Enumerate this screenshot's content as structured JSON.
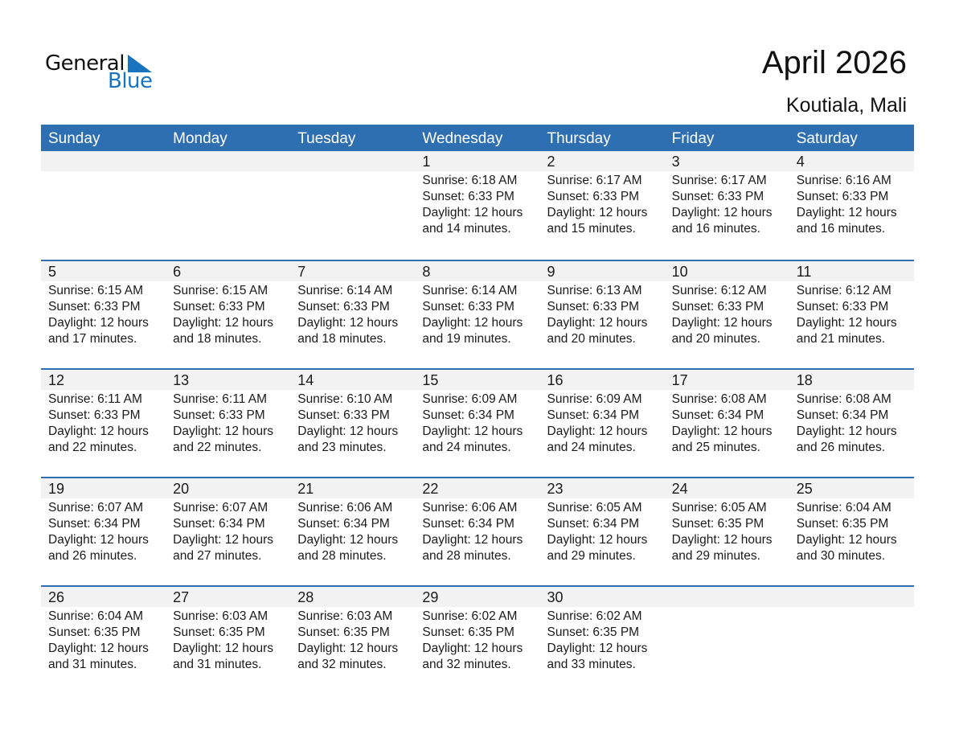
{
  "logo": {
    "text1": "General",
    "text2": "Blue",
    "color": "#1a73be"
  },
  "header": {
    "title": "April 2026",
    "location": "Koutiala, Mali"
  },
  "accent": "#2e6fb1",
  "weekdays": [
    "Sunday",
    "Monday",
    "Tuesday",
    "Wednesday",
    "Thursday",
    "Friday",
    "Saturday"
  ],
  "weeks": [
    [
      null,
      null,
      null,
      {
        "day": "1",
        "sunrise": "Sunrise: 6:18 AM",
        "sunset": "Sunset: 6:33 PM",
        "daylight1": "Daylight: 12 hours",
        "daylight2": "and 14 minutes."
      },
      {
        "day": "2",
        "sunrise": "Sunrise: 6:17 AM",
        "sunset": "Sunset: 6:33 PM",
        "daylight1": "Daylight: 12 hours",
        "daylight2": "and 15 minutes."
      },
      {
        "day": "3",
        "sunrise": "Sunrise: 6:17 AM",
        "sunset": "Sunset: 6:33 PM",
        "daylight1": "Daylight: 12 hours",
        "daylight2": "and 16 minutes."
      },
      {
        "day": "4",
        "sunrise": "Sunrise: 6:16 AM",
        "sunset": "Sunset: 6:33 PM",
        "daylight1": "Daylight: 12 hours",
        "daylight2": "and 16 minutes."
      }
    ],
    [
      {
        "day": "5",
        "sunrise": "Sunrise: 6:15 AM",
        "sunset": "Sunset: 6:33 PM",
        "daylight1": "Daylight: 12 hours",
        "daylight2": "and 17 minutes."
      },
      {
        "day": "6",
        "sunrise": "Sunrise: 6:15 AM",
        "sunset": "Sunset: 6:33 PM",
        "daylight1": "Daylight: 12 hours",
        "daylight2": "and 18 minutes."
      },
      {
        "day": "7",
        "sunrise": "Sunrise: 6:14 AM",
        "sunset": "Sunset: 6:33 PM",
        "daylight1": "Daylight: 12 hours",
        "daylight2": "and 18 minutes."
      },
      {
        "day": "8",
        "sunrise": "Sunrise: 6:14 AM",
        "sunset": "Sunset: 6:33 PM",
        "daylight1": "Daylight: 12 hours",
        "daylight2": "and 19 minutes."
      },
      {
        "day": "9",
        "sunrise": "Sunrise: 6:13 AM",
        "sunset": "Sunset: 6:33 PM",
        "daylight1": "Daylight: 12 hours",
        "daylight2": "and 20 minutes."
      },
      {
        "day": "10",
        "sunrise": "Sunrise: 6:12 AM",
        "sunset": "Sunset: 6:33 PM",
        "daylight1": "Daylight: 12 hours",
        "daylight2": "and 20 minutes."
      },
      {
        "day": "11",
        "sunrise": "Sunrise: 6:12 AM",
        "sunset": "Sunset: 6:33 PM",
        "daylight1": "Daylight: 12 hours",
        "daylight2": "and 21 minutes."
      }
    ],
    [
      {
        "day": "12",
        "sunrise": "Sunrise: 6:11 AM",
        "sunset": "Sunset: 6:33 PM",
        "daylight1": "Daylight: 12 hours",
        "daylight2": "and 22 minutes."
      },
      {
        "day": "13",
        "sunrise": "Sunrise: 6:11 AM",
        "sunset": "Sunset: 6:33 PM",
        "daylight1": "Daylight: 12 hours",
        "daylight2": "and 22 minutes."
      },
      {
        "day": "14",
        "sunrise": "Sunrise: 6:10 AM",
        "sunset": "Sunset: 6:33 PM",
        "daylight1": "Daylight: 12 hours",
        "daylight2": "and 23 minutes."
      },
      {
        "day": "15",
        "sunrise": "Sunrise: 6:09 AM",
        "sunset": "Sunset: 6:34 PM",
        "daylight1": "Daylight: 12 hours",
        "daylight2": "and 24 minutes."
      },
      {
        "day": "16",
        "sunrise": "Sunrise: 6:09 AM",
        "sunset": "Sunset: 6:34 PM",
        "daylight1": "Daylight: 12 hours",
        "daylight2": "and 24 minutes."
      },
      {
        "day": "17",
        "sunrise": "Sunrise: 6:08 AM",
        "sunset": "Sunset: 6:34 PM",
        "daylight1": "Daylight: 12 hours",
        "daylight2": "and 25 minutes."
      },
      {
        "day": "18",
        "sunrise": "Sunrise: 6:08 AM",
        "sunset": "Sunset: 6:34 PM",
        "daylight1": "Daylight: 12 hours",
        "daylight2": "and 26 minutes."
      }
    ],
    [
      {
        "day": "19",
        "sunrise": "Sunrise: 6:07 AM",
        "sunset": "Sunset: 6:34 PM",
        "daylight1": "Daylight: 12 hours",
        "daylight2": "and 26 minutes."
      },
      {
        "day": "20",
        "sunrise": "Sunrise: 6:07 AM",
        "sunset": "Sunset: 6:34 PM",
        "daylight1": "Daylight: 12 hours",
        "daylight2": "and 27 minutes."
      },
      {
        "day": "21",
        "sunrise": "Sunrise: 6:06 AM",
        "sunset": "Sunset: 6:34 PM",
        "daylight1": "Daylight: 12 hours",
        "daylight2": "and 28 minutes."
      },
      {
        "day": "22",
        "sunrise": "Sunrise: 6:06 AM",
        "sunset": "Sunset: 6:34 PM",
        "daylight1": "Daylight: 12 hours",
        "daylight2": "and 28 minutes."
      },
      {
        "day": "23",
        "sunrise": "Sunrise: 6:05 AM",
        "sunset": "Sunset: 6:34 PM",
        "daylight1": "Daylight: 12 hours",
        "daylight2": "and 29 minutes."
      },
      {
        "day": "24",
        "sunrise": "Sunrise: 6:05 AM",
        "sunset": "Sunset: 6:35 PM",
        "daylight1": "Daylight: 12 hours",
        "daylight2": "and 29 minutes."
      },
      {
        "day": "25",
        "sunrise": "Sunrise: 6:04 AM",
        "sunset": "Sunset: 6:35 PM",
        "daylight1": "Daylight: 12 hours",
        "daylight2": "and 30 minutes."
      }
    ],
    [
      {
        "day": "26",
        "sunrise": "Sunrise: 6:04 AM",
        "sunset": "Sunset: 6:35 PM",
        "daylight1": "Daylight: 12 hours",
        "daylight2": "and 31 minutes."
      },
      {
        "day": "27",
        "sunrise": "Sunrise: 6:03 AM",
        "sunset": "Sunset: 6:35 PM",
        "daylight1": "Daylight: 12 hours",
        "daylight2": "and 31 minutes."
      },
      {
        "day": "28",
        "sunrise": "Sunrise: 6:03 AM",
        "sunset": "Sunset: 6:35 PM",
        "daylight1": "Daylight: 12 hours",
        "daylight2": "and 32 minutes."
      },
      {
        "day": "29",
        "sunrise": "Sunrise: 6:02 AM",
        "sunset": "Sunset: 6:35 PM",
        "daylight1": "Daylight: 12 hours",
        "daylight2": "and 32 minutes."
      },
      {
        "day": "30",
        "sunrise": "Sunrise: 6:02 AM",
        "sunset": "Sunset: 6:35 PM",
        "daylight1": "Daylight: 12 hours",
        "daylight2": "and 33 minutes."
      },
      null,
      null
    ]
  ]
}
